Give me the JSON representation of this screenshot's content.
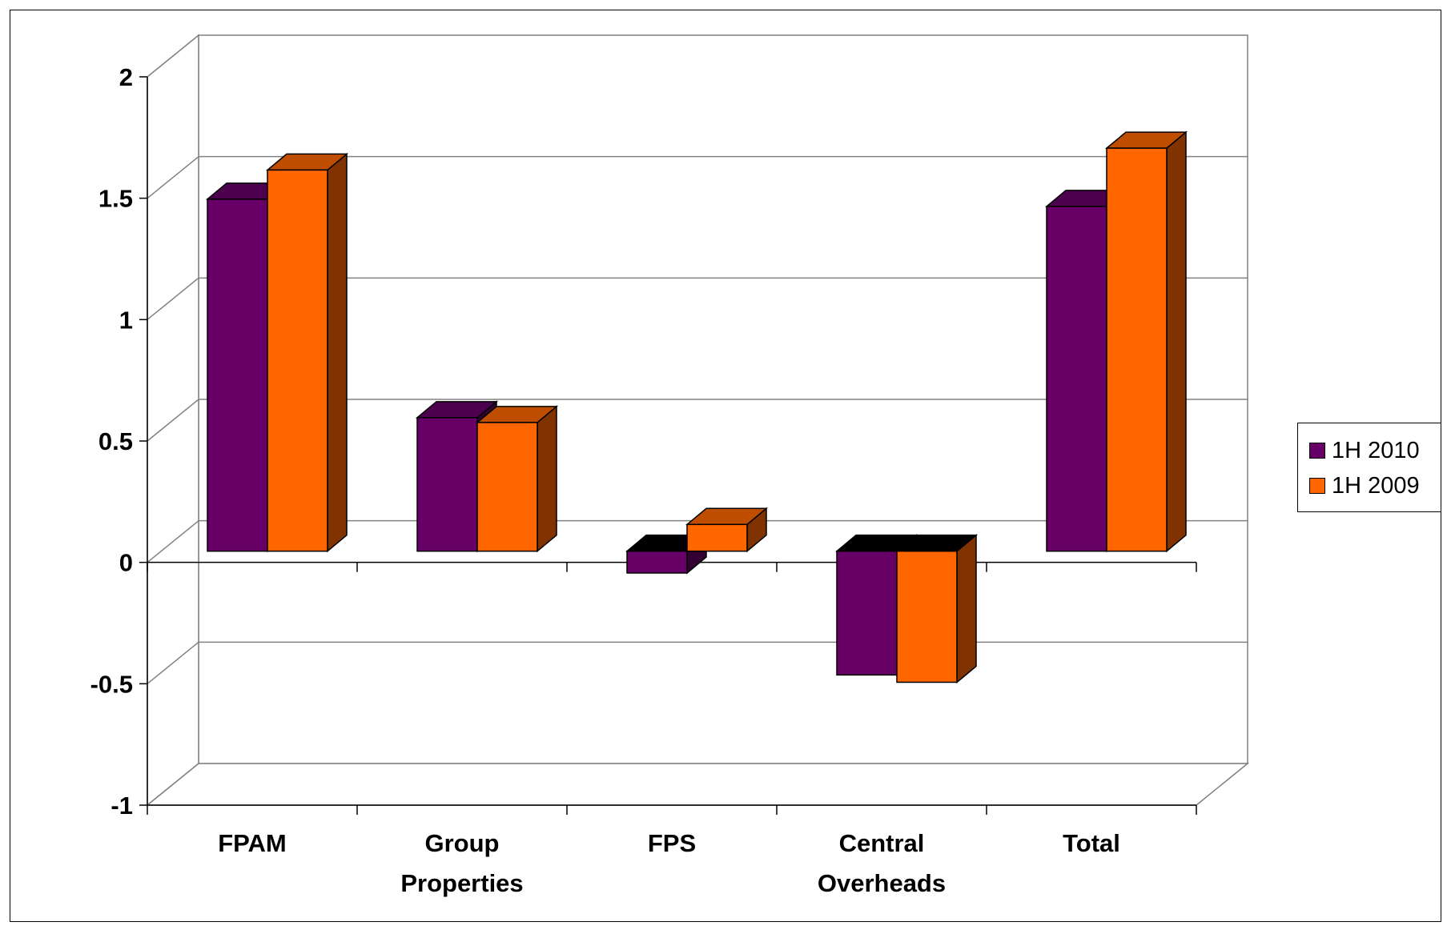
{
  "chart_data": {
    "type": "bar",
    "style": "3d-clustered-column",
    "categories": [
      [
        "FPAM"
      ],
      [
        "Group",
        "Properties"
      ],
      [
        "FPS"
      ],
      [
        "Central",
        "Overheads"
      ],
      [
        "Total"
      ]
    ],
    "series": [
      {
        "name": "1H 2010",
        "color": "#660066",
        "values": [
          1.45,
          0.55,
          -0.09,
          -0.51,
          1.42
        ]
      },
      {
        "name": "1H 2009",
        "color": "#ff6600",
        "values": [
          1.57,
          0.53,
          0.11,
          -0.54,
          1.66
        ]
      }
    ],
    "yticks": [
      "2",
      "1.5",
      "1",
      "0.5",
      "0",
      "-0.5",
      "-1"
    ],
    "ylim": [
      -1,
      2
    ],
    "grid": true,
    "legend": "right"
  }
}
